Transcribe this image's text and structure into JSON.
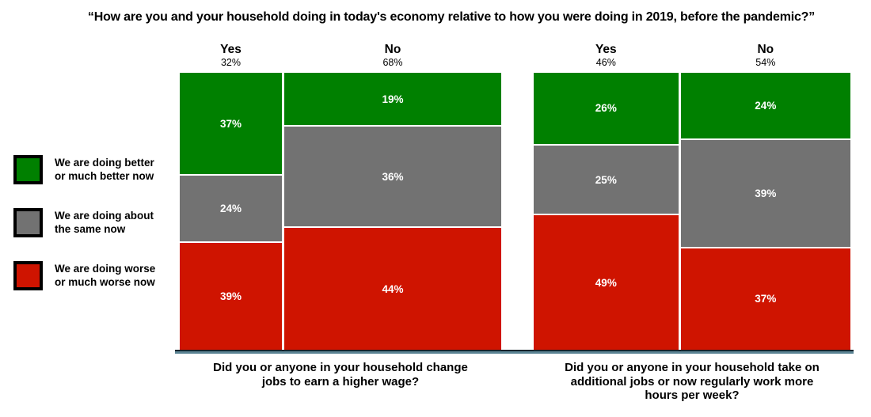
{
  "title": "“How are you and your household doing in today's economy relative to how you were doing in 2019, before the pandemic?”",
  "colors": {
    "better": "#008000",
    "same": "#727272",
    "worse": "#cf1400",
    "baseline": "#5b8494",
    "baseline_edge": "#17242d",
    "segment_divider": "#ffffff",
    "segment_label_text": "#ffffff"
  },
  "legend": {
    "items": [
      {
        "series": "better",
        "lines": [
          "We are doing better",
          "or much better now"
        ]
      },
      {
        "series": "same",
        "lines": [
          "We are doing about",
          "the same now"
        ]
      },
      {
        "series": "worse",
        "lines": [
          "We are doing worse",
          "or much worse now"
        ]
      }
    ]
  },
  "chart_data": {
    "type": "mosaic-stacked-bar",
    "title": "“How are you and your household doing in today's economy relative to how you were doing in 2019, before the pandemic?”",
    "legend_position": "left",
    "series": [
      {
        "id": "better",
        "label": "We are doing better or much better now",
        "color": "#008000"
      },
      {
        "id": "same",
        "label": "We are doing about the same now",
        "color": "#727272"
      },
      {
        "id": "worse",
        "label": "We are doing worse or much worse now",
        "color": "#cf1400"
      }
    ],
    "groups": [
      {
        "question": "Did you or anyone in your household change jobs to earn a higher wage?",
        "question_lines": [
          "Did you or anyone in your household change",
          "jobs to earn a higher wage?"
        ],
        "columns": [
          {
            "answer": "Yes",
            "share_pct": 32,
            "share_label": "32%",
            "values": [
              37,
              24,
              39
            ],
            "value_labels": [
              "37%",
              "24%",
              "39%"
            ]
          },
          {
            "answer": "No",
            "share_pct": 68,
            "share_label": "68%",
            "values": [
              19,
              36,
              44
            ],
            "value_labels": [
              "19%",
              "36%",
              "44%"
            ]
          }
        ]
      },
      {
        "question": "Did you or anyone in your household take on additional jobs or now regularly work more hours per week?",
        "question_lines": [
          "Did you or anyone in your household take on",
          "additional jobs or now regularly work more",
          "hours per week?"
        ],
        "columns": [
          {
            "answer": "Yes",
            "share_pct": 46,
            "share_label": "46%",
            "values": [
              26,
              25,
              49
            ],
            "value_labels": [
              "26%",
              "25%",
              "49%"
            ]
          },
          {
            "answer": "No",
            "share_pct": 54,
            "share_label": "54%",
            "values": [
              24,
              39,
              37
            ],
            "value_labels": [
              "24%",
              "39%",
              "37%"
            ]
          }
        ]
      }
    ]
  }
}
